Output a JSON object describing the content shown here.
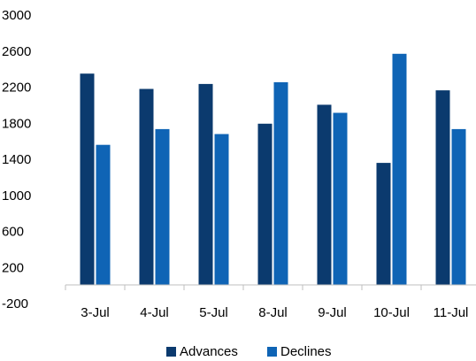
{
  "chart_data": {
    "type": "bar",
    "title": "",
    "xlabel": "",
    "ylabel": "",
    "categories": [
      "3-Jul",
      "4-Jul",
      "5-Jul",
      "8-Jul",
      "9-Jul",
      "10-Jul",
      "11-Jul"
    ],
    "series": [
      {
        "name": "Advances",
        "color": "#0b3a6e",
        "values": [
          2350,
          2180,
          2235,
          1795,
          2005,
          1360,
          2165
        ]
      },
      {
        "name": "Declines",
        "color": "#0f64b5",
        "values": [
          1560,
          1735,
          1680,
          2255,
          1915,
          2570,
          1735
        ]
      }
    ],
    "ylim": [
      -200,
      3000
    ],
    "yticks": [
      -200,
      200,
      600,
      1000,
      1400,
      1800,
      2200,
      2600,
      3000
    ],
    "ytick_labels": [
      "-200",
      "200",
      "600",
      "1000",
      "1400",
      "1800",
      "2200",
      "2600",
      "3000"
    ],
    "grid": false,
    "legend_position": "bottom"
  }
}
